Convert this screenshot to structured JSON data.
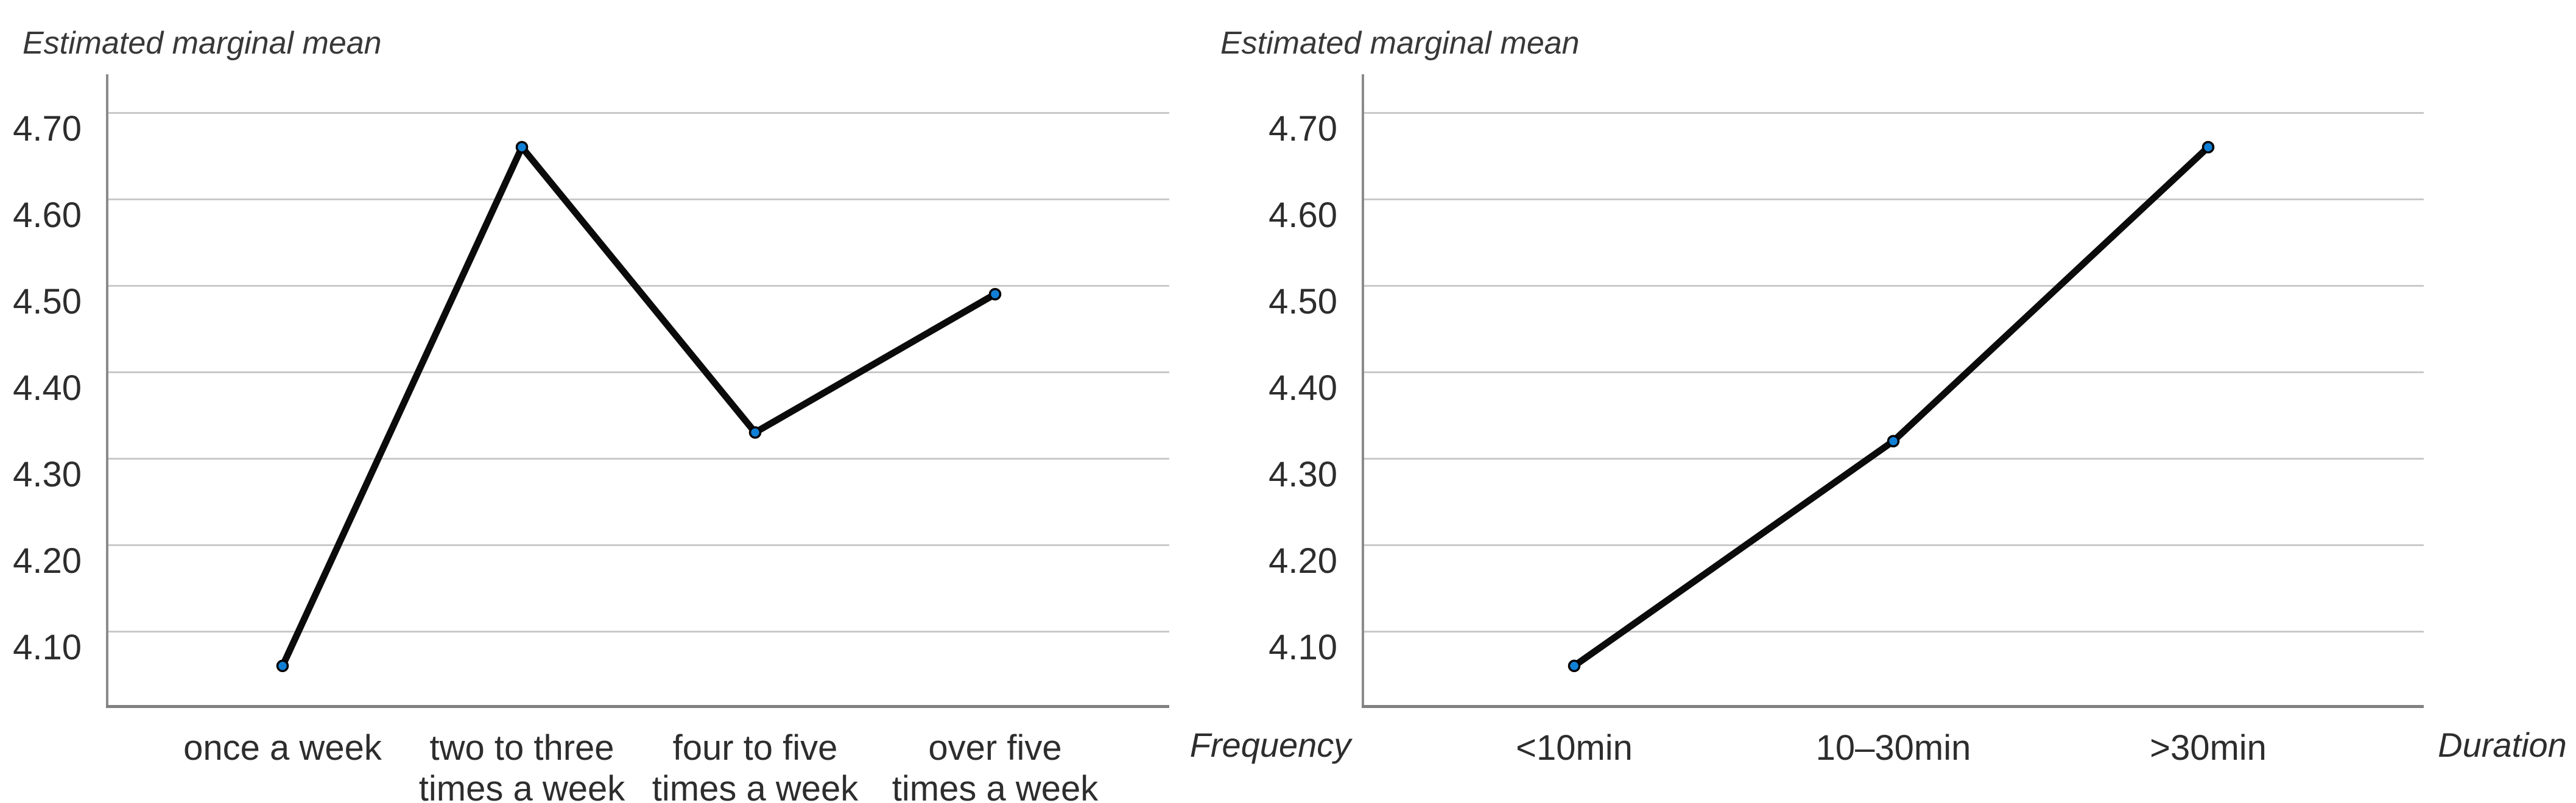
{
  "page": {
    "background": "#ffffff"
  },
  "colors": {
    "line": "#0b0b0b",
    "marker_fill": "#1080d6",
    "marker_stroke": "#000000",
    "gridline": "#c9c9c9",
    "axis_line": "#8a8a8a",
    "tick_text": "#2d2d2d",
    "title_text": "#383838"
  },
  "chart_data": [
    {
      "type": "line",
      "title": "Estimated marginal mean",
      "xlabel": "Frequency",
      "categories": [
        "once a week",
        "two to three\ntimes a week",
        "four to five\ntimes a week",
        "over five\ntimes a week"
      ],
      "values": [
        4.06,
        4.66,
        4.33,
        4.49
      ],
      "ytick_labels": [
        "4.70",
        "4.60",
        "4.50",
        "4.40",
        "4.30",
        "4.20",
        "4.10"
      ],
      "ytick_values": [
        4.7,
        4.6,
        4.5,
        4.4,
        4.3,
        4.2,
        4.1
      ],
      "ylim": [
        4.02,
        4.74
      ],
      "grid": true,
      "legend_position": "none"
    },
    {
      "type": "line",
      "title": "Estimated marginal mean",
      "xlabel": "Duration",
      "categories": [
        "<10min",
        "10–30min",
        ">30min"
      ],
      "values": [
        4.06,
        4.32,
        4.66
      ],
      "ytick_labels": [
        "4.70",
        "4.60",
        "4.50",
        "4.40",
        "4.30",
        "4.20",
        "4.10"
      ],
      "ytick_values": [
        4.7,
        4.6,
        4.5,
        4.4,
        4.3,
        4.2,
        4.1
      ],
      "ylim": [
        4.02,
        4.74
      ],
      "grid": true,
      "legend_position": "none"
    }
  ]
}
